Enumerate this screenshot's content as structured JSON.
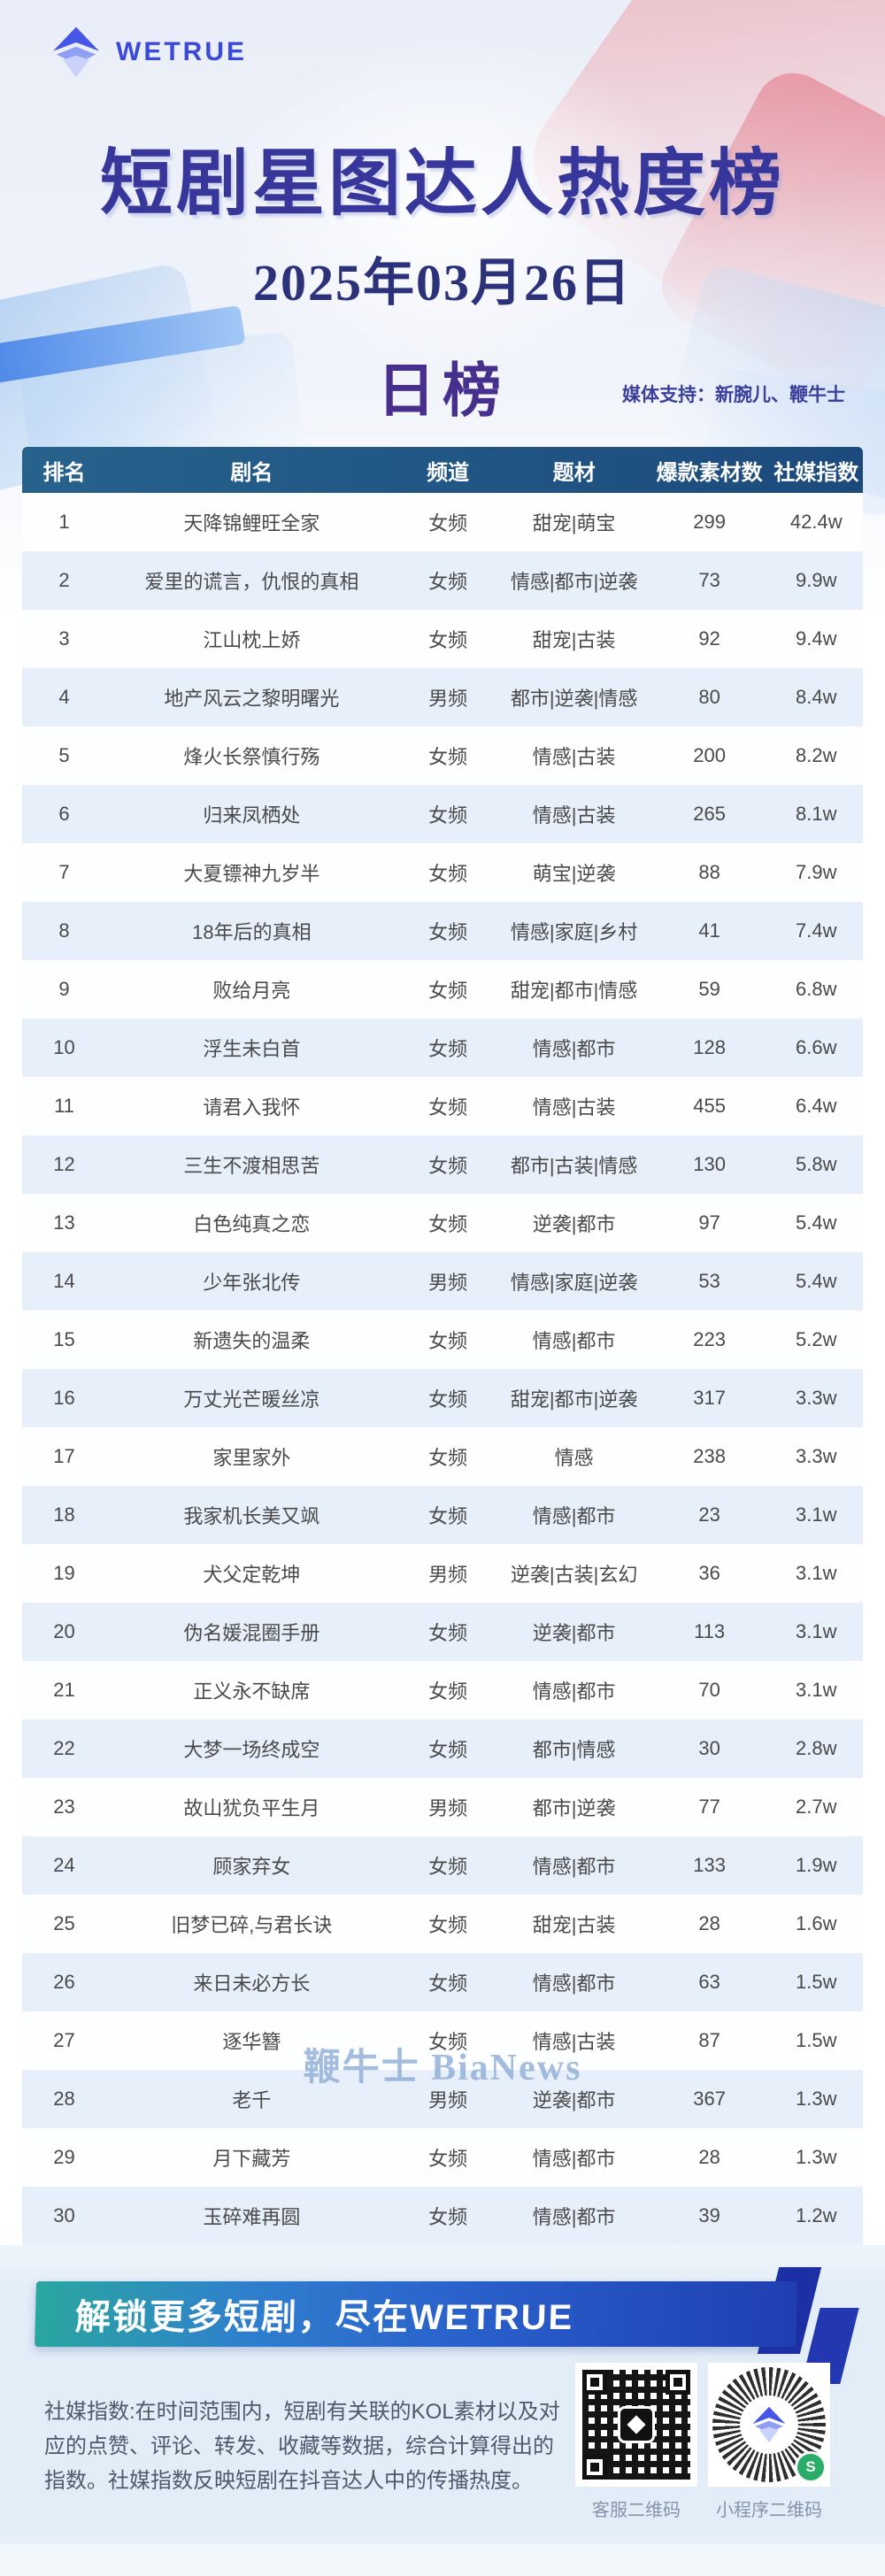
{
  "header": {
    "brand": "WETRUE",
    "title": "短剧星图达人热度榜",
    "date": "2025年03月26日",
    "rank_type": "日榜",
    "media_support": "媒体支持：新腕儿、鞭牛士"
  },
  "watermark": "鞭牛士 BiaNews",
  "table": {
    "columns": [
      "排名",
      "剧名",
      "频道",
      "题材",
      "爆款素材数",
      "社媒指数"
    ],
    "rows": [
      [
        "1",
        "天降锦鲤旺全家",
        "女频",
        "甜宠|萌宝",
        "299",
        "42.4w"
      ],
      [
        "2",
        "爱里的谎言，仇恨的真相",
        "女频",
        "情感|都市|逆袭",
        "73",
        "9.9w"
      ],
      [
        "3",
        "江山枕上娇",
        "女频",
        "甜宠|古装",
        "92",
        "9.4w"
      ],
      [
        "4",
        "地产风云之黎明曙光",
        "男频",
        "都市|逆袭|情感",
        "80",
        "8.4w"
      ],
      [
        "5",
        "烽火长祭慎行殇",
        "女频",
        "情感|古装",
        "200",
        "8.2w"
      ],
      [
        "6",
        "归来凤栖处",
        "女频",
        "情感|古装",
        "265",
        "8.1w"
      ],
      [
        "7",
        "大夏镖神九岁半",
        "女频",
        "萌宝|逆袭",
        "88",
        "7.9w"
      ],
      [
        "8",
        "18年后的真相",
        "女频",
        "情感|家庭|乡村",
        "41",
        "7.4w"
      ],
      [
        "9",
        "败给月亮",
        "女频",
        "甜宠|都市|情感",
        "59",
        "6.8w"
      ],
      [
        "10",
        "浮生未白首",
        "女频",
        "情感|都市",
        "128",
        "6.6w"
      ],
      [
        "11",
        "请君入我怀",
        "女频",
        "情感|古装",
        "455",
        "6.4w"
      ],
      [
        "12",
        "三生不渡相思苦",
        "女频",
        "都市|古装|情感",
        "130",
        "5.8w"
      ],
      [
        "13",
        "白色纯真之恋",
        "女频",
        "逆袭|都市",
        "97",
        "5.4w"
      ],
      [
        "14",
        "少年张北传",
        "男频",
        "情感|家庭|逆袭",
        "53",
        "5.4w"
      ],
      [
        "15",
        "新遗失的温柔",
        "女频",
        "情感|都市",
        "223",
        "5.2w"
      ],
      [
        "16",
        "万丈光芒暖丝凉",
        "女频",
        "甜宠|都市|逆袭",
        "317",
        "3.3w"
      ],
      [
        "17",
        "家里家外",
        "女频",
        "情感",
        "238",
        "3.3w"
      ],
      [
        "18",
        "我家机长美又飒",
        "女频",
        "情感|都市",
        "23",
        "3.1w"
      ],
      [
        "19",
        "犬父定乾坤",
        "男频",
        "逆袭|古装|玄幻",
        "36",
        "3.1w"
      ],
      [
        "20",
        "伪名媛混圈手册",
        "女频",
        "逆袭|都市",
        "113",
        "3.1w"
      ],
      [
        "21",
        "正义永不缺席",
        "女频",
        "情感|都市",
        "70",
        "3.1w"
      ],
      [
        "22",
        "大梦一场终成空",
        "女频",
        "都市|情感",
        "30",
        "2.8w"
      ],
      [
        "23",
        "故山犹负平生月",
        "男频",
        "都市|逆袭",
        "77",
        "2.7w"
      ],
      [
        "24",
        "顾家弃女",
        "女频",
        "情感|都市",
        "133",
        "1.9w"
      ],
      [
        "25",
        "旧梦已碎,与君长诀",
        "女频",
        "甜宠|古装",
        "28",
        "1.6w"
      ],
      [
        "26",
        "来日未必方长",
        "女频",
        "情感|都市",
        "63",
        "1.5w"
      ],
      [
        "27",
        "逐华簪",
        "女频",
        "情感|古装",
        "87",
        "1.5w"
      ],
      [
        "28",
        "老千",
        "男频",
        "逆袭|都市",
        "367",
        "1.3w"
      ],
      [
        "29",
        "月下藏芳",
        "女频",
        "情感|都市",
        "28",
        "1.3w"
      ],
      [
        "30",
        "玉碎难再圆",
        "女频",
        "情感|都市",
        "39",
        "1.2w"
      ]
    ]
  },
  "footer": {
    "banner": "解锁更多短剧，尽在WETRUE",
    "description": "社媒指数:在时间范围内，短剧有关联的KOL素材以及对应的点赞、评论、转发、收藏等数据，综合计算得出的指数。社媒指数反映短剧在抖音达人中的传播热度。",
    "qr_service_label": "客服二维码",
    "qr_miniprogram_label": "小程序二维码",
    "wechat_icon_glyph": "S"
  },
  "colors": {
    "brand_blue": "#3b4ad8",
    "title_indigo": "#37379b",
    "rank_type_purple": "#472f8e",
    "table_header_bar": "#1c4a7c",
    "row_alt_blue": "#e6effa",
    "banner_teal": "#2aa79f",
    "banner_blue": "#1f3eb2",
    "watermark_blue": "#8fadd8",
    "pink_decor": "#eca6af"
  }
}
